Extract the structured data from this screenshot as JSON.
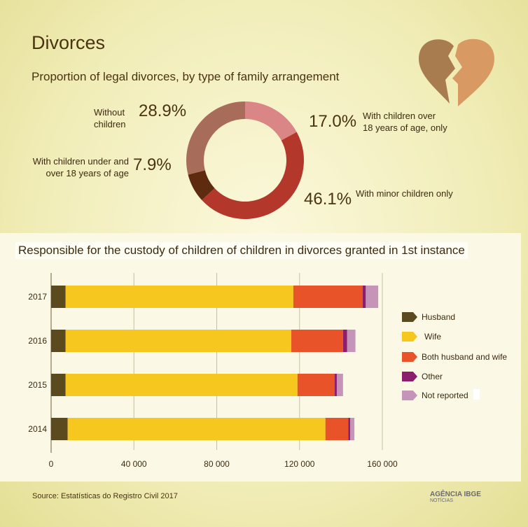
{
  "header": {
    "title": "Divorces",
    "subtitle": "Proportion of legal divorces, by type of family arrangement"
  },
  "donut": {
    "segments": [
      {
        "label": "With children over 18 years of age, only",
        "label_line1": "With children over",
        "label_line2": "18 years of age, only",
        "value": 17.0,
        "display": "17.0%",
        "color": "#db8686"
      },
      {
        "label": "With minor children only",
        "value": 46.1,
        "display": "46.1%",
        "color": "#b4372c"
      },
      {
        "label": "With children under and over 18 years of age",
        "label_line1": "With children under and",
        "label_line2": "over 18 years of age",
        "value": 7.9,
        "display": "7.9%",
        "color": "#5e2a10"
      },
      {
        "label": "Without children",
        "label_line1": "Without",
        "label_line2": "children",
        "value": 28.9,
        "display": "28.9%",
        "color": "#a86c5a"
      }
    ]
  },
  "chart_data": {
    "type": "bar",
    "orientation": "horizontal",
    "stacked": true,
    "title": "Responsible for the custody of children of children in divorces granted in 1st instance",
    "categories": [
      "2017",
      "2016",
      "2015",
      "2014"
    ],
    "series": [
      {
        "name": "Husband",
        "color": "#5b4a1e",
        "values": [
          7000,
          7000,
          7000,
          8000
        ]
      },
      {
        "name": "Wife",
        "color": "#f6c81f",
        "values": [
          110000,
          109000,
          112000,
          124500
        ]
      },
      {
        "name": "Both husband and wife",
        "color": "#e8532a",
        "values": [
          33500,
          25000,
          18000,
          11000
        ]
      },
      {
        "name": "Other",
        "color": "#8c1f6b",
        "values": [
          1500,
          2000,
          1000,
          1000
        ]
      },
      {
        "name": "Not reported",
        "color": "#c594b8",
        "values": [
          6000,
          4000,
          3000,
          2000
        ]
      }
    ],
    "xlim": [
      0,
      160000
    ],
    "xticks": [
      "0",
      "40 000",
      "80 000",
      "120 000",
      "160 000"
    ],
    "xtick_values": [
      0,
      40000,
      80000,
      120000,
      160000
    ],
    "grid": "vertical"
  },
  "footer": {
    "source": "Source: Estatísticas do Registro Civil 2017",
    "logo_text": "AGÊNCIA IBGE",
    "logo_sub": "NOTÍCIAS"
  },
  "colors": {
    "heart_left": "#a87c4e",
    "heart_right": "#d89a62"
  },
  "icons": [
    "broken-heart-icon",
    "ibge-logo-icon"
  ]
}
